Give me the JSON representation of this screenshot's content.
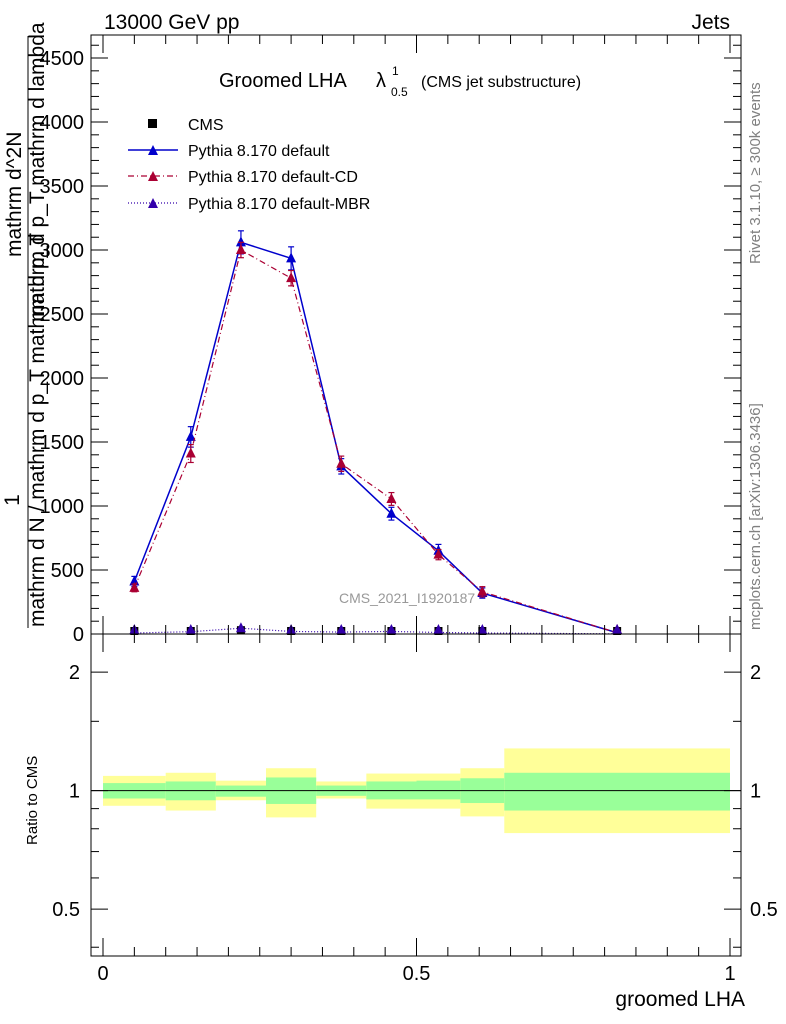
{
  "header": {
    "energy_label": "13000 GeV pp",
    "process_label": "Jets"
  },
  "side_labels": {
    "rivet": "Rivet 3.1.10, ≥ 300k events",
    "mcplots": "mcplots.cern.ch [arXiv:1306.3436]"
  },
  "chart_data": [
    {
      "type": "line",
      "title": "Groomed LHA",
      "title_lambda": "λ",
      "title_sup": "1",
      "title_sub": "0.5",
      "subtitle": "(CMS jet substructure)",
      "watermark": "CMS_2021_I1920187",
      "ylabel_line1": "1",
      "ylabel_main": "mathrm d N / mathrm d p_T mathrm d p_T",
      "ylabel_numerator": "mathrm d^2N",
      "ylabel_denominator": "mathrm d p_T mathrm d lambda",
      "yticks": [
        "0",
        "500",
        "1000",
        "1500",
        "2000",
        "2500",
        "3000",
        "3500",
        "4000",
        "4500"
      ],
      "ylim": [
        0,
        4680
      ],
      "xlim": [
        0,
        1
      ],
      "legend_position": "top-left",
      "series": [
        {
          "name": "CMS",
          "color": "#000000",
          "marker": "square",
          "x": [
            0.05,
            0.14,
            0.22,
            0.3,
            0.38,
            0.46,
            0.535,
            0.605,
            0.82
          ],
          "y": [
            3,
            10,
            30,
            10,
            8,
            8,
            6,
            4,
            1
          ]
        },
        {
          "name": "Pythia 8.170 default",
          "color": "#0000cc",
          "line": "solid",
          "marker": "triangle",
          "x": [
            0.05,
            0.14,
            0.22,
            0.3,
            0.38,
            0.46,
            0.535,
            0.605,
            0.82
          ],
          "y": [
            410,
            1540,
            3060,
            2935,
            1310,
            940,
            650,
            320,
            10
          ],
          "err": [
            40,
            80,
            90,
            90,
            60,
            50,
            50,
            40,
            5
          ]
        },
        {
          "name": "Pythia 8.170 default-CD",
          "color": "#aa0033",
          "line": "dashdot",
          "marker": "triangle",
          "x": [
            0.05,
            0.14,
            0.22,
            0.3,
            0.38,
            0.46,
            0.535,
            0.605,
            0.82
          ],
          "y": [
            360,
            1410,
            3000,
            2780,
            1330,
            1055,
            620,
            330,
            10
          ],
          "err": [
            30,
            70,
            60,
            60,
            60,
            50,
            40,
            40,
            5
          ]
        },
        {
          "name": "Pythia 8.170 default-MBR",
          "color": "#3300aa",
          "line": "dotted",
          "marker": "triangle",
          "x": [
            0.05,
            0.14,
            0.22,
            0.3,
            0.38,
            0.46,
            0.535,
            0.605,
            0.82
          ],
          "y": [
            8,
            18,
            45,
            20,
            15,
            20,
            12,
            8,
            1
          ]
        }
      ]
    },
    {
      "type": "area",
      "ylabel": "Ratio to CMS",
      "xlabel": "groomed LHA",
      "xticks": [
        "0",
        "0.5",
        "1"
      ],
      "yticks_left": [
        "0.5",
        "1",
        "2"
      ],
      "yticks_right": [
        "0.5",
        "1",
        "2"
      ],
      "ylog": true,
      "ylim": [
        0.38,
        2.5
      ],
      "xlim": [
        0,
        1
      ],
      "reference_line": 1,
      "band_colors": {
        "inner": "#99ff99",
        "outer": "#ffff99"
      },
      "bins": [
        {
          "x0": 0.0,
          "x1": 0.1,
          "outer": [
            0.915,
            1.09
          ],
          "inner": [
            0.955,
            1.045
          ]
        },
        {
          "x0": 0.1,
          "x1": 0.18,
          "outer": [
            0.89,
            1.11
          ],
          "inner": [
            0.945,
            1.055
          ]
        },
        {
          "x0": 0.18,
          "x1": 0.26,
          "outer": [
            0.945,
            1.06
          ],
          "inner": [
            0.965,
            1.03
          ]
        },
        {
          "x0": 0.26,
          "x1": 0.34,
          "outer": [
            0.855,
            1.14
          ],
          "inner": [
            0.925,
            1.08
          ]
        },
        {
          "x0": 0.34,
          "x1": 0.42,
          "outer": [
            0.955,
            1.055
          ],
          "inner": [
            0.97,
            1.03
          ]
        },
        {
          "x0": 0.42,
          "x1": 0.5,
          "outer": [
            0.9,
            1.105
          ],
          "inner": [
            0.95,
            1.055
          ]
        },
        {
          "x0": 0.5,
          "x1": 0.57,
          "outer": [
            0.9,
            1.105
          ],
          "inner": [
            0.95,
            1.06
          ]
        },
        {
          "x0": 0.57,
          "x1": 0.64,
          "outer": [
            0.86,
            1.14
          ],
          "inner": [
            0.93,
            1.075
          ]
        },
        {
          "x0": 0.64,
          "x1": 1.0,
          "outer": [
            0.78,
            1.28
          ],
          "inner": [
            0.89,
            1.11
          ]
        }
      ]
    }
  ]
}
